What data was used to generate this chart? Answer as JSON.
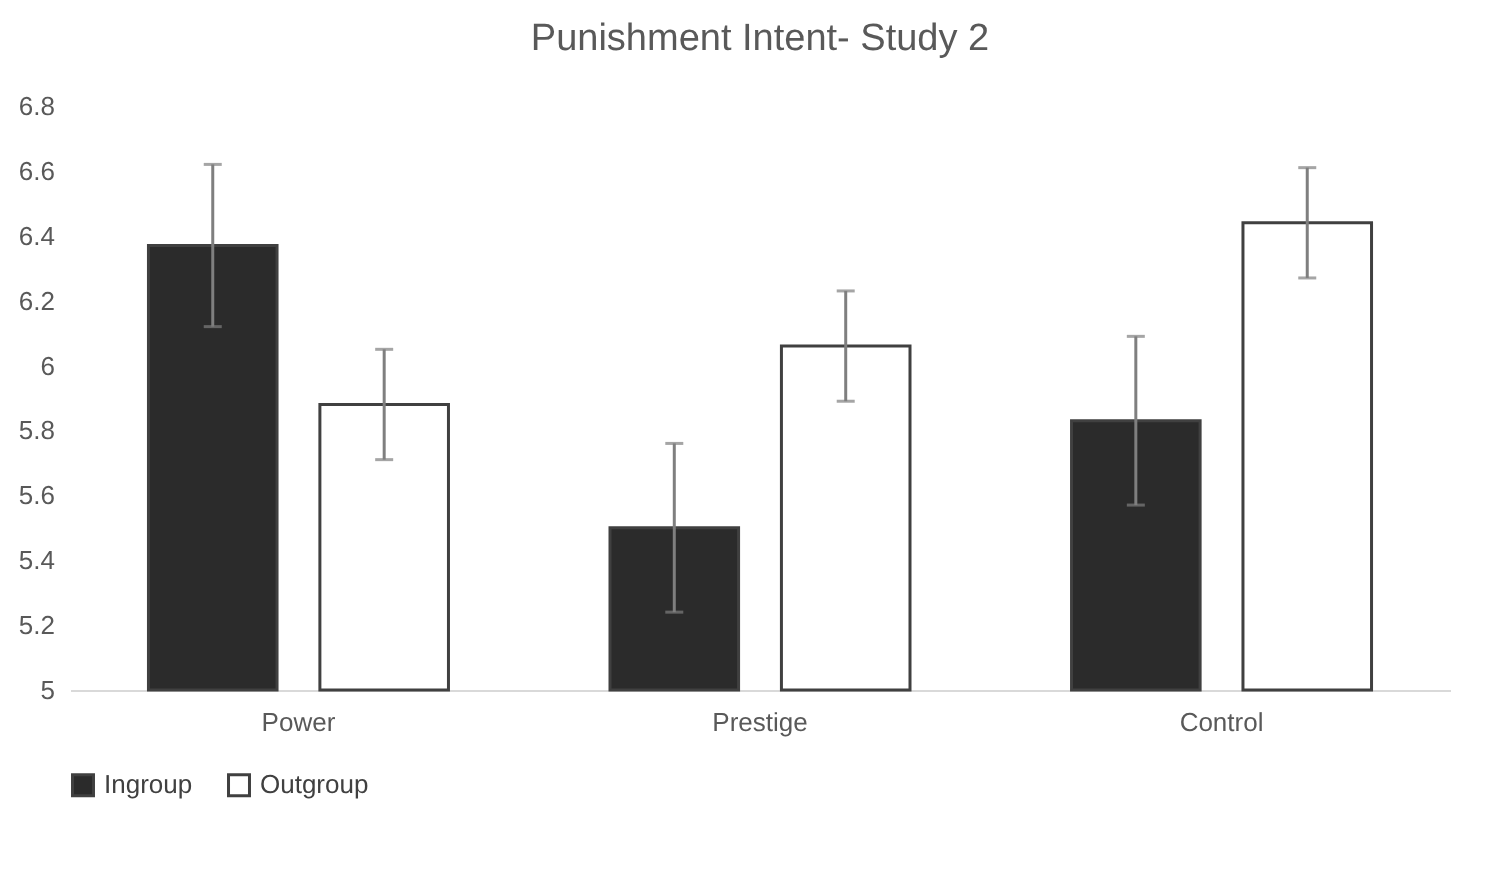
{
  "chart_data": {
    "type": "bar",
    "title": "Punishment Intent- Study 2",
    "categories": [
      "Power",
      "Prestige",
      "Control"
    ],
    "series": [
      {
        "name": "Ingroup",
        "color": "#2b2b2b",
        "values": [
          6.37,
          5.5,
          5.83
        ],
        "errors": [
          0.25,
          0.26,
          0.26
        ]
      },
      {
        "name": "Outgroup",
        "color": "#ffffff",
        "values": [
          5.88,
          6.06,
          6.44
        ],
        "errors": [
          0.17,
          0.17,
          0.17
        ]
      }
    ],
    "ylim": [
      5,
      6.8
    ],
    "yticks": [
      5,
      5.2,
      5.4,
      5.6,
      5.8,
      6,
      6.2,
      6.4,
      6.6,
      6.8
    ],
    "grid": false,
    "legend": "bottom"
  }
}
